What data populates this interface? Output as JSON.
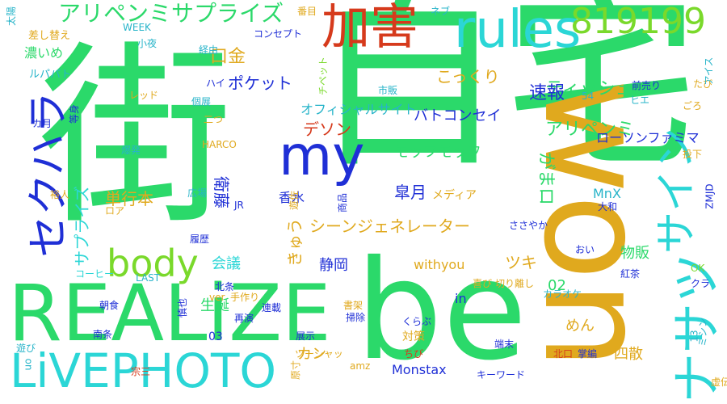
{
  "word_cloud": {
    "colors": {
      "green": "#2bd96a",
      "lime": "#7ad92b",
      "orange": "#e0a91e",
      "red": "#d63a1c",
      "cyan": "#2bd6d6",
      "blue": "#1f2fd6",
      "teal": "#27b4c9"
    },
    "words": [
      {
        "text": "街",
        "color": "green",
        "vertical": false
      },
      {
        "text": "自宅",
        "color": "green",
        "vertical": false
      },
      {
        "text": "won",
        "color": "orange",
        "vertical": true
      },
      {
        "text": "be",
        "color": "green",
        "vertical": false
      },
      {
        "text": "REALiZE",
        "color": "green",
        "vertical": false
      },
      {
        "text": "LiVEPHOTO",
        "color": "cyan",
        "vertical": false
      },
      {
        "text": "加害",
        "color": "red",
        "vertical": false
      },
      {
        "text": "rules",
        "color": "cyan",
        "vertical": false
      },
      {
        "text": "819199",
        "color": "lime",
        "vertical": false
      },
      {
        "text": "my",
        "color": "blue",
        "vertical": false
      },
      {
        "text": "body",
        "color": "lime",
        "vertical": false
      },
      {
        "text": "セクハラ",
        "color": "blue",
        "vertical": true
      },
      {
        "text": "サイン",
        "color": "cyan",
        "vertical": true
      },
      {
        "text": "ナサツ",
        "color": "cyan",
        "vertical": true
      },
      {
        "text": "アリペンミサプライズ",
        "color": "green",
        "vertical": false
      },
      {
        "text": "ティッシュ",
        "color": "green",
        "vertical": false
      },
      {
        "text": "ポケット",
        "color": "blue",
        "vertical": false
      },
      {
        "text": "こっくり",
        "color": "orange",
        "vertical": false
      },
      {
        "text": "速報",
        "color": "blue",
        "vertical": false
      },
      {
        "text": "口金",
        "color": "orange",
        "vertical": false
      },
      {
        "text": "オフィシャルサイト",
        "color": "teal",
        "vertical": false
      },
      {
        "text": "バトコンセイ",
        "color": "blue",
        "vertical": false
      },
      {
        "text": "デソン",
        "color": "red",
        "vertical": false
      },
      {
        "text": "アリペンミ",
        "color": "green",
        "vertical": false
      },
      {
        "text": "モッフモッフ",
        "color": "green",
        "vertical": false
      },
      {
        "text": "ローソンファミマ",
        "color": "blue",
        "vertical": false
      },
      {
        "text": "単行本",
        "color": "orange",
        "vertical": false
      },
      {
        "text": "皐月",
        "color": "blue",
        "vertical": false
      },
      {
        "text": "メディア",
        "color": "orange",
        "vertical": false
      },
      {
        "text": "がまロ",
        "color": "green",
        "vertical": true
      },
      {
        "text": "衛藤",
        "color": "blue",
        "vertical": true
      },
      {
        "text": "香水",
        "color": "blue",
        "vertical": false
      },
      {
        "text": "MnX",
        "color": "teal",
        "vertical": false
      },
      {
        "text": "シーンジェネレーター",
        "color": "orange",
        "vertical": false
      },
      {
        "text": "サプライズ",
        "color": "cyan",
        "vertical": true
      },
      {
        "text": "きゅう",
        "color": "orange",
        "vertical": true
      },
      {
        "text": "会議",
        "color": "cyan",
        "vertical": false
      },
      {
        "text": "静岡",
        "color": "blue",
        "vertical": false
      },
      {
        "text": "withyou",
        "color": "orange",
        "vertical": false
      },
      {
        "text": "ツキ",
        "color": "orange",
        "vertical": false
      },
      {
        "text": "物販",
        "color": "green",
        "vertical": false
      },
      {
        "text": "生誕",
        "color": "green",
        "vertical": false
      },
      {
        "text": "02",
        "color": "green",
        "vertical": false
      },
      {
        "text": "カン",
        "color": "orange",
        "vertical": false
      },
      {
        "text": "in",
        "color": "blue",
        "vertical": false
      },
      {
        "text": "めん",
        "color": "orange",
        "vertical": false
      },
      {
        "text": "03",
        "color": "blue",
        "vertical": false
      },
      {
        "text": "対策",
        "color": "orange",
        "vertical": false
      },
      {
        "text": "Monstax",
        "color": "blue",
        "vertical": false
      },
      {
        "text": "四散",
        "color": "orange",
        "vertical": false
      },
      {
        "text": "濃いめ",
        "color": "green",
        "vertical": false
      },
      {
        "text": "差し替え",
        "color": "orange",
        "vertical": false
      },
      {
        "text": "ルパパト",
        "color": "teal",
        "vertical": false
      },
      {
        "text": "WEEK",
        "color": "teal",
        "vertical": false
      },
      {
        "text": "小夜",
        "color": "teal",
        "vertical": false
      },
      {
        "text": "コンセプト",
        "color": "blue",
        "vertical": false
      },
      {
        "text": "レッド",
        "color": "orange",
        "vertical": false
      },
      {
        "text": "ハイ",
        "color": "blue",
        "vertical": false
      },
      {
        "text": "個展",
        "color": "teal",
        "vertical": false
      },
      {
        "text": "経由",
        "color": "teal",
        "vertical": false
      },
      {
        "text": "市販",
        "color": "teal",
        "vertical": false
      },
      {
        "text": "HARCO",
        "color": "orange",
        "vertical": false
      },
      {
        "text": "爆発",
        "color": "teal",
        "vertical": false
      },
      {
        "text": "広場",
        "color": "teal",
        "vertical": false
      },
      {
        "text": "ロア",
        "color": "orange",
        "vertical": false
      },
      {
        "text": "JR",
        "color": "blue",
        "vertical": false
      },
      {
        "text": "履歴",
        "color": "blue",
        "vertical": false
      },
      {
        "text": "コーヒー",
        "color": "cyan",
        "vertical": false
      },
      {
        "text": "LAST",
        "color": "teal",
        "vertical": false
      },
      {
        "text": "朝食",
        "color": "blue",
        "vertical": false
      },
      {
        "text": "南条",
        "color": "blue",
        "vertical": false
      },
      {
        "text": "遊び",
        "color": "teal",
        "vertical": false
      },
      {
        "text": "北条",
        "color": "blue",
        "vertical": false
      },
      {
        "text": "ver",
        "color": "orange",
        "vertical": false
      },
      {
        "text": "手作り",
        "color": "orange",
        "vertical": false
      },
      {
        "text": "再演",
        "color": "blue",
        "vertical": false
      },
      {
        "text": "連載",
        "color": "blue",
        "vertical": false
      },
      {
        "text": "展示",
        "color": "blue",
        "vertical": false
      },
      {
        "text": "ささやか",
        "color": "blue",
        "vertical": false
      },
      {
        "text": "大和",
        "color": "blue",
        "vertical": false
      },
      {
        "text": "おい",
        "color": "blue",
        "vertical": false
      },
      {
        "text": "喜び",
        "color": "orange",
        "vertical": false
      },
      {
        "text": "切り離し",
        "color": "orange",
        "vertical": false
      },
      {
        "text": "カラオケ",
        "color": "teal",
        "vertical": false
      },
      {
        "text": "紅茶",
        "color": "blue",
        "vertical": false
      },
      {
        "text": "OK",
        "color": "lime",
        "vertical": false
      },
      {
        "text": "クラ",
        "color": "blue",
        "vertical": false
      },
      {
        "text": "書架",
        "color": "orange",
        "vertical": false
      },
      {
        "text": "掃除",
        "color": "blue",
        "vertical": false
      },
      {
        "text": "くらぶ",
        "color": "blue",
        "vertical": false
      },
      {
        "text": "ちび",
        "color": "red",
        "vertical": false
      },
      {
        "text": "ツーシャッ",
        "color": "orange",
        "vertical": false
      },
      {
        "text": "端末",
        "color": "blue",
        "vertical": false
      },
      {
        "text": "北口",
        "color": "red",
        "vertical": false
      },
      {
        "text": "掌編",
        "color": "blue",
        "vertical": false
      },
      {
        "text": "キーワード",
        "color": "blue",
        "vertical": false
      },
      {
        "text": "amz",
        "color": "orange",
        "vertical": false
      },
      {
        "text": "宗三",
        "color": "red",
        "vertical": false
      },
      {
        "text": "虚伝",
        "color": "orange",
        "vertical": false
      },
      {
        "text": "ネブ",
        "color": "teal",
        "vertical": false
      },
      {
        "text": "番目",
        "color": "orange",
        "vertical": false
      },
      {
        "text": "たび",
        "color": "orange",
        "vertical": false
      },
      {
        "text": "前売り",
        "color": "blue",
        "vertical": false
      },
      {
        "text": "ヒエ",
        "color": "teal",
        "vertical": false
      },
      {
        "text": "ごろ",
        "color": "orange",
        "vertical": false
      },
      {
        "text": "投下",
        "color": "orange",
        "vertical": false
      },
      {
        "text": "54",
        "color": "teal",
        "vertical": false
      },
      {
        "text": "アイス",
        "color": "teal",
        "vertical": true
      },
      {
        "text": "チペット",
        "color": "lime",
        "vertical": true
      },
      {
        "text": "太陽",
        "color": "teal",
        "vertical": true
      },
      {
        "text": "等身",
        "color": "blue",
        "vertical": true
      },
      {
        "text": "カ月",
        "color": "blue",
        "vertical": false
      },
      {
        "text": "裕人",
        "color": "orange",
        "vertical": false
      },
      {
        "text": "二つ",
        "color": "orange",
        "vertical": false
      },
      {
        "text": "ZMJD",
        "color": "blue",
        "vertical": true
      },
      {
        "text": "商品",
        "color": "blue",
        "vertical": true
      },
      {
        "text": "遊佐",
        "color": "orange",
        "vertical": true
      },
      {
        "text": "ミシン",
        "color": "teal",
        "vertical": true
      },
      {
        "text": "13",
        "color": "teal",
        "vertical": true
      },
      {
        "text": "慎也",
        "color": "blue",
        "vertical": true
      },
      {
        "text": "原寸",
        "color": "orange",
        "vertical": true
      },
      {
        "text": "uo",
        "color": "teal",
        "vertical": true
      }
    ]
  }
}
